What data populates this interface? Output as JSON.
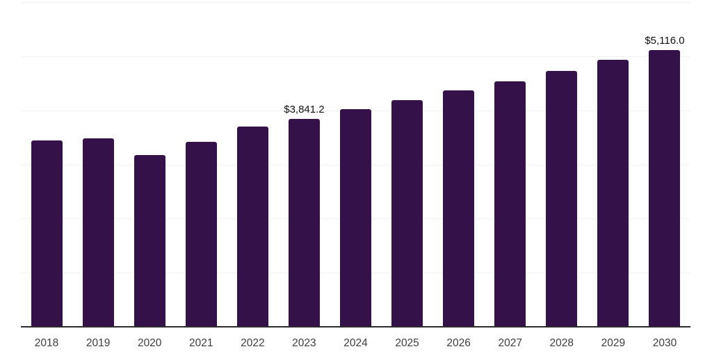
{
  "chart_data": {
    "type": "bar",
    "title": "",
    "xlabel": "",
    "ylabel": "",
    "categories": [
      "2018",
      "2019",
      "2020",
      "2021",
      "2022",
      "2023",
      "2024",
      "2025",
      "2026",
      "2027",
      "2028",
      "2029",
      "2030"
    ],
    "values": [
      3443,
      3483,
      3174,
      3419,
      3700,
      3841.2,
      4021,
      4188,
      4368,
      4535,
      4728,
      4934,
      5116
    ],
    "bar_labels": [
      "",
      "",
      "",
      "",
      "",
      "$3,841.2",
      "",
      "",
      "",
      "",
      "",
      "",
      "$5,116.0"
    ],
    "ylim": [
      0,
      6000
    ],
    "ytick_step": 1000,
    "ytick_labels_visible": false,
    "grid": "horizontal",
    "legend": "none",
    "colors": {
      "bar": "#35114A",
      "gridline": "#f2f2f2",
      "axis_line": "#2b2b2b",
      "x_axis_label": "#3d3d3d",
      "bar_value_label": "#111111",
      "background": "#ffffff"
    }
  }
}
